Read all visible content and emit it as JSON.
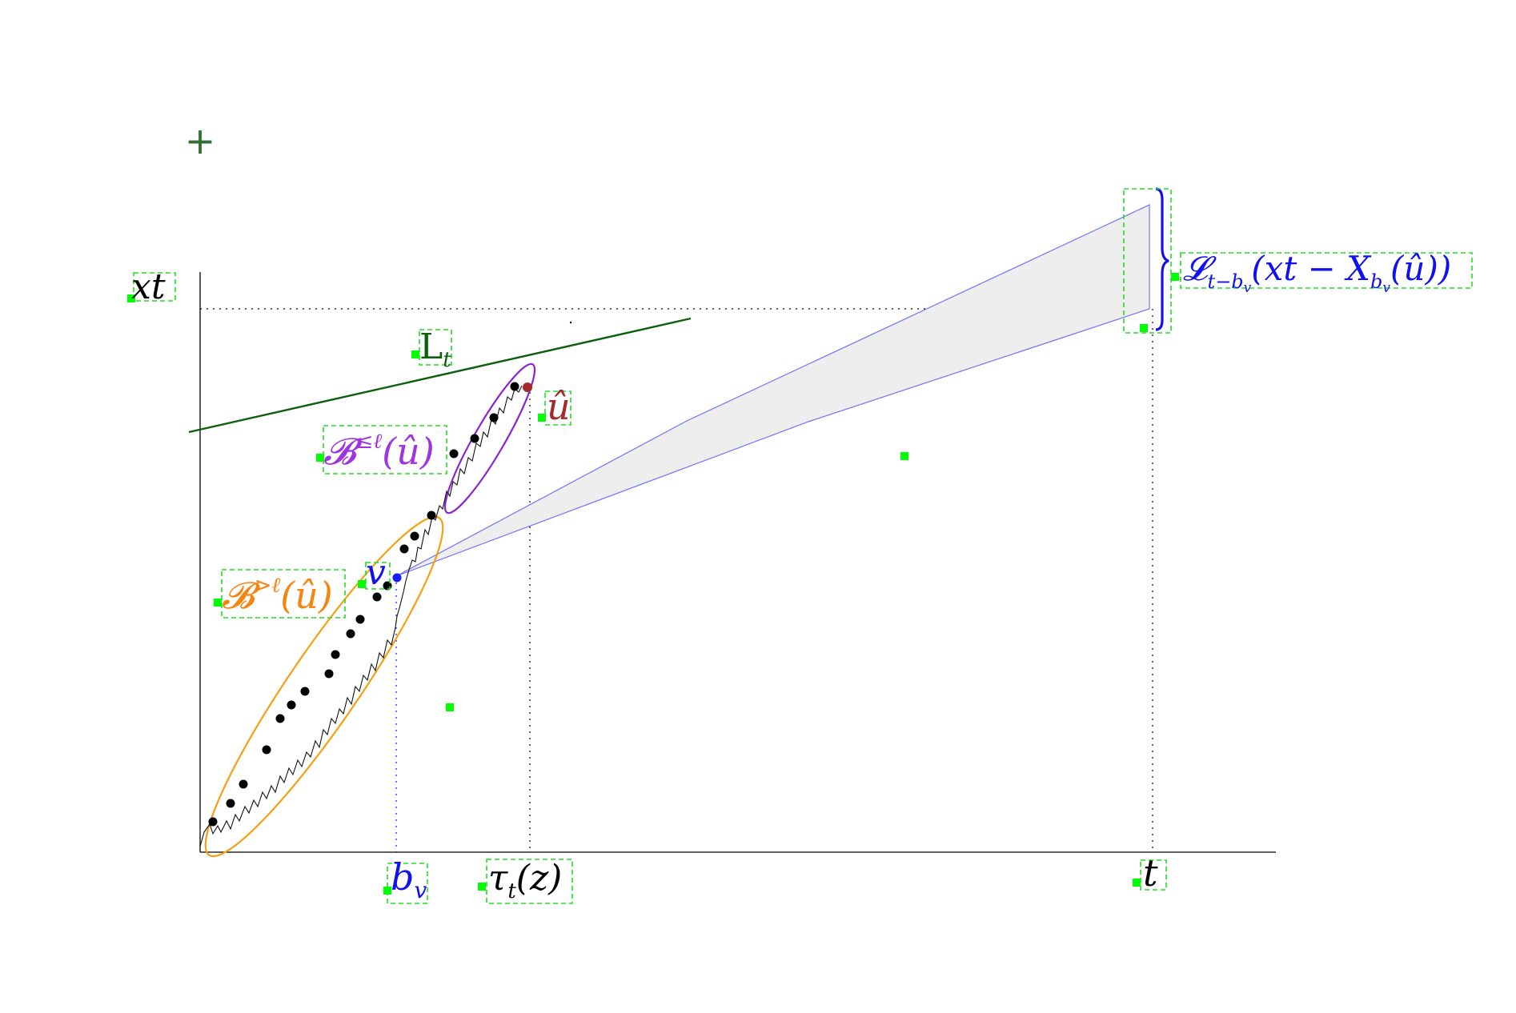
{
  "colors": {
    "axis": "#000000",
    "guide_dotted": "#000000",
    "guide_dotted_blue": "#1a1aff",
    "barrier": "#0b5e0b",
    "barrier_label": "#0b5e0b",
    "cone_fill": "#eeeeee",
    "cone_stroke": "#6f73ff",
    "brace": "#1010f0",
    "label_blue": "#1010f0",
    "orange": "#f5a012",
    "orange_label": "#f58410",
    "purple": "#8a24d2",
    "purple_label": "#a033e0",
    "u_hat": "#a32a2a",
    "label_box": "#22dd22",
    "marker": "#00ff00",
    "plus": "#2f6f2f",
    "path": "#111111",
    "dots": "#000000",
    "v_dot": "#1a1aff"
  },
  "labels": {
    "y_axis": "xt",
    "barrier": {
      "base": "L",
      "sub": "t"
    },
    "b_le": {
      "base": "𝓑",
      "sup": "≤ℓ",
      "arg": "(û)"
    },
    "b_gt": {
      "base": "𝓑",
      "sup": ">ℓ",
      "arg": "(û)"
    },
    "u_hat": "û",
    "v": "v",
    "b_v": {
      "base": "b",
      "sub": "v"
    },
    "tau": {
      "base": "τ",
      "sub": "t",
      "arg": "(z)"
    },
    "t": "t",
    "cone": {
      "base": "𝓛",
      "sub": "t−b",
      "subsub": "v",
      "arg1": "(xt − X",
      "argsub": "b",
      "argsubsub": "v",
      "arg2": "(û))"
    },
    "plus": "+"
  }
}
